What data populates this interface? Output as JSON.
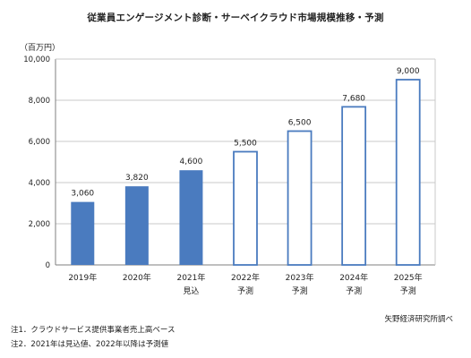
{
  "chart_data": {
    "type": "bar",
    "title": "従業員エンゲージメント診断・サーベイクラウド市場規模推移・予測",
    "unit_label": "（百万円）",
    "categories": [
      [
        "2019年",
        ""
      ],
      [
        "2020年",
        ""
      ],
      [
        "2021年",
        "見込"
      ],
      [
        "2022年",
        "予測"
      ],
      [
        "2023年",
        "予測"
      ],
      [
        "2024年",
        "予測"
      ],
      [
        "2025年",
        "予測"
      ]
    ],
    "values": [
      3060,
      3820,
      4600,
      5500,
      6500,
      7680,
      9000
    ],
    "value_labels": [
      "3,060",
      "3,820",
      "4,600",
      "5,500",
      "6,500",
      "7,680",
      "9,000"
    ],
    "bar_style": [
      "filled",
      "filled",
      "filled",
      "outline",
      "outline",
      "outline",
      "outline"
    ],
    "ylim": [
      0,
      10000
    ],
    "yticks": [
      0,
      2000,
      4000,
      6000,
      8000,
      10000
    ],
    "ytick_labels": [
      "0",
      "2,000",
      "4,000",
      "6,000",
      "8,000",
      "10,000"
    ],
    "grid": "horizontal",
    "legend": "none",
    "colors": {
      "bar": "#4a7bbf",
      "grid": "#c8c8c8",
      "axis": "#7f7f7f"
    }
  },
  "source": "矢野経済研究所調べ",
  "notes": [
    "注1．クラウドサービス提供事業者売上高ベース",
    "注2．2021年は見込値、2022年以降は予測値"
  ]
}
